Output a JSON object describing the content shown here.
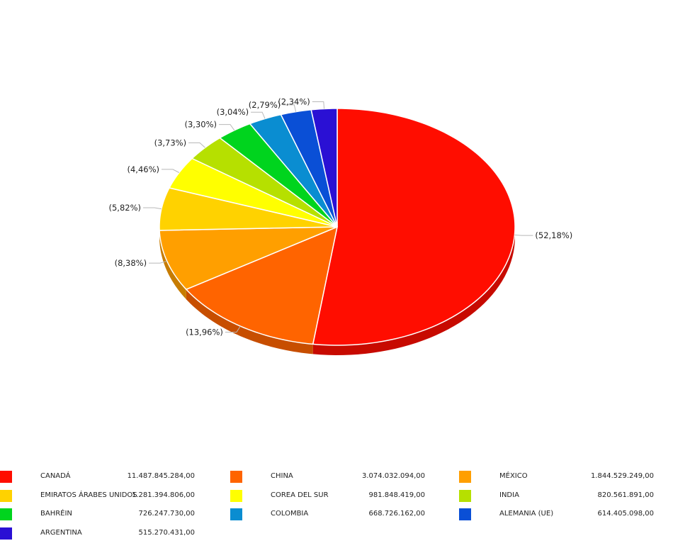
{
  "chart_data": {
    "type": "pie",
    "style": "3d",
    "categories": [
      "CANADÁ",
      "CHINA",
      "MÉXICO",
      "EMIRATOS ÁRABES UNIDOS",
      "COREA DEL SUR",
      "INDIA",
      "BAHRÉIN",
      "COLOMBIA",
      "ALEMANIA (UE)",
      "ARGENTINA"
    ],
    "values": [
      11487845284.0,
      3074032094.0,
      1844529249.0,
      1281394806.0,
      981848419.0,
      820561891.0,
      726247730.0,
      668726162.0,
      614405098.0,
      515270431.0
    ],
    "value_labels": [
      "11.487.845.284,00",
      "3.074.032.094,00",
      "1.844.529.249,00",
      "1.281.394.806,00",
      "981.848.419,00",
      "820.561.891,00",
      "726.247.730,00",
      "668.726.162,00",
      "614.405.098,00",
      "515.270.431,00"
    ],
    "percent_labels": [
      "(52,18%)",
      "(13,96%)",
      "(8,38%)",
      "(5,82%)",
      "(4,46%)",
      "(3,73%)",
      "(3,30%)",
      "(3,04%)",
      "(2,79%)",
      "(2,34%)"
    ],
    "colors": [
      "#ff0d00",
      "#ff6400",
      "#ff9f00",
      "#ffd200",
      "#ffff00",
      "#b6e000",
      "#00d41e",
      "#0a8dd1",
      "#0a4fd6",
      "#2a10d4"
    ],
    "legend_position": "bottom"
  }
}
